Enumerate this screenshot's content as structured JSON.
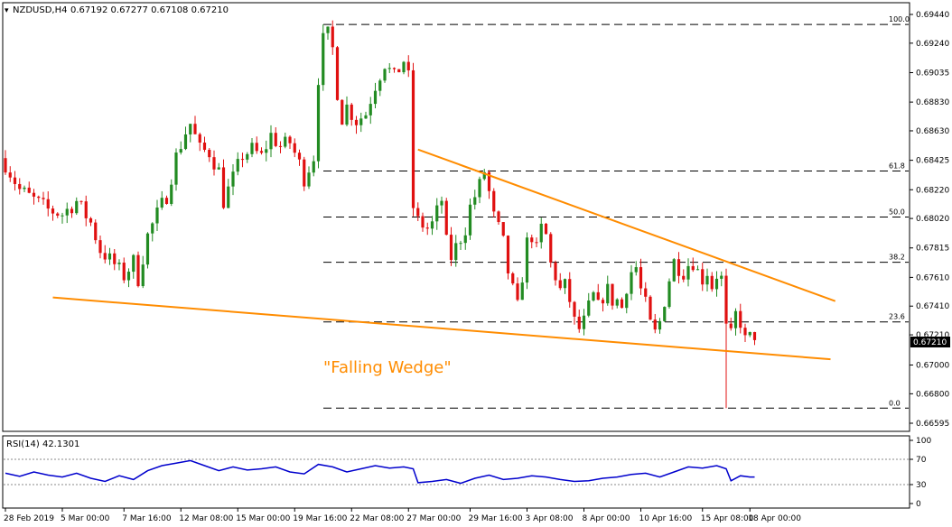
{
  "header": {
    "symbol": "NZDUSD,H4",
    "ohlc": "0.67192 0.67277 0.67108 0.67210"
  },
  "current_price": "0.67210",
  "pattern_label": "\"Falling Wedge\"",
  "colors": {
    "up_candle": "#228b22",
    "down_candle": "#e01010",
    "trendline": "#ff8c00",
    "rsi_line": "#0000cd",
    "fib_lines": "#000000",
    "price_label_bg": "#000000"
  },
  "chart_data": [
    {
      "type": "candlestick",
      "symbol": "NZDUSD",
      "timeframe": "H4",
      "ylim": [
        0.66595,
        0.6944
      ],
      "y_ticks": [
        "0.69440",
        "0.69240",
        "0.69035",
        "0.68830",
        "0.68630",
        "0.68425",
        "0.68220",
        "0.68020",
        "0.67815",
        "0.67610",
        "0.67410",
        "0.67210",
        "0.67000",
        "0.66800",
        "0.66595"
      ],
      "x_ticks": [
        "28 Feb 2019",
        "5 Mar 00:00",
        "7 Mar 16:00",
        "12 Mar 08:00",
        "15 Mar 00:00",
        "19 Mar 16:00",
        "22 Mar 08:00",
        "27 Mar 00:00",
        "29 Mar 16:00",
        "3 Apr 08:00",
        "8 Apr 00:00",
        "10 Apr 16:00",
        "15 Apr 08:00",
        "18 Apr 00:00"
      ],
      "close_path": [
        [
          0,
          0.684
        ],
        [
          3,
          0.6822
        ],
        [
          6,
          0.6815
        ],
        [
          9,
          0.6808
        ],
        [
          12,
          0.6805
        ],
        [
          15,
          0.6814
        ],
        [
          18,
          0.6799
        ],
        [
          20,
          0.678
        ],
        [
          23,
          0.677
        ],
        [
          25,
          0.6762
        ],
        [
          27,
          0.6772
        ],
        [
          28,
          0.676
        ],
        [
          30,
          0.679
        ],
        [
          32,
          0.6805
        ],
        [
          34,
          0.6818
        ],
        [
          36,
          0.6845
        ],
        [
          38,
          0.6862
        ],
        [
          39,
          0.6868
        ],
        [
          41,
          0.685
        ],
        [
          43,
          0.6848
        ],
        [
          45,
          0.6835
        ],
        [
          46,
          0.6814
        ],
        [
          48,
          0.683
        ],
        [
          50,
          0.6846
        ],
        [
          52,
          0.685
        ],
        [
          54,
          0.6845
        ],
        [
          56,
          0.686
        ],
        [
          58,
          0.6852
        ],
        [
          60,
          0.6855
        ],
        [
          62,
          0.684
        ],
        [
          63,
          0.683
        ],
        [
          65,
          0.6845
        ],
        [
          66,
          0.69
        ],
        [
          67,
          0.6926
        ],
        [
          68,
          0.693
        ],
        [
          69,
          0.692
        ],
        [
          70,
          0.689
        ],
        [
          71,
          0.6872
        ],
        [
          72,
          0.688
        ],
        [
          74,
          0.687
        ],
        [
          76,
          0.6875
        ],
        [
          78,
          0.6895
        ],
        [
          80,
          0.691
        ],
        [
          82,
          0.69
        ],
        [
          84,
          0.6912
        ],
        [
          85,
          0.69
        ],
        [
          86,
          0.681
        ],
        [
          87,
          0.68
        ],
        [
          89,
          0.6795
        ],
        [
          90,
          0.6798
        ],
        [
          92,
          0.6815
        ],
        [
          93,
          0.6785
        ],
        [
          94,
          0.6775
        ],
        [
          95,
          0.6782
        ],
        [
          97,
          0.6795
        ],
        [
          98,
          0.681
        ],
        [
          100,
          0.6825
        ],
        [
          101,
          0.6835
        ],
        [
          102,
          0.682
        ],
        [
          103,
          0.6803
        ],
        [
          104,
          0.6795
        ],
        [
          105,
          0.6785
        ],
        [
          106,
          0.6765
        ],
        [
          107,
          0.6752
        ],
        [
          108,
          0.674
        ],
        [
          109,
          0.6762
        ],
        [
          110,
          0.6785
        ],
        [
          111,
          0.679
        ],
        [
          112,
          0.678
        ],
        [
          113,
          0.6795
        ],
        [
          114,
          0.679
        ],
        [
          115,
          0.677
        ],
        [
          116,
          0.6762
        ],
        [
          117,
          0.6752
        ],
        [
          118,
          0.6755
        ],
        [
          119,
          0.6745
        ],
        [
          120,
          0.673
        ],
        [
          121,
          0.6725
        ],
        [
          122,
          0.673
        ],
        [
          123,
          0.674
        ],
        [
          124,
          0.6748
        ],
        [
          125,
          0.674
        ],
        [
          126,
          0.6748
        ],
        [
          127,
          0.6752
        ],
        [
          128,
          0.6745
        ],
        [
          129,
          0.6745
        ],
        [
          130,
          0.674
        ],
        [
          131,
          0.6755
        ],
        [
          132,
          0.6765
        ],
        [
          133,
          0.6768
        ],
        [
          134,
          0.6752
        ],
        [
          135,
          0.6742
        ],
        [
          136,
          0.6728
        ],
        [
          137,
          0.6722
        ],
        [
          138,
          0.673
        ],
        [
          139,
          0.6745
        ],
        [
          140,
          0.676
        ],
        [
          141,
          0.6772
        ],
        [
          142,
          0.6768
        ],
        [
          143,
          0.6765
        ],
        [
          144,
          0.677
        ],
        [
          145,
          0.6772
        ],
        [
          146,
          0.6765
        ],
        [
          147,
          0.676
        ],
        [
          148,
          0.6765
        ],
        [
          149,
          0.6755
        ],
        [
          150,
          0.6763
        ],
        [
          151,
          0.676
        ],
        [
          152,
          0.6725
        ],
        [
          153,
          0.672
        ],
        [
          154,
          0.6735
        ],
        [
          155,
          0.673
        ],
        [
          156,
          0.6717
        ],
        [
          157,
          0.6719
        ],
        [
          158,
          0.6721
        ]
      ],
      "overlays": [
        {
          "kind": "fibonacci",
          "levels": [
            {
              "label": "100.0",
              "price": 0.6937
            },
            {
              "label": "61.8",
              "price": 0.6835
            },
            {
              "label": "50.0",
              "price": 0.6803
            },
            {
              "label": "38.2",
              "price": 0.67715
            },
            {
              "label": "23.6",
              "price": 0.673
            },
            {
              "label": "0.0",
              "price": 0.667
            }
          ]
        },
        {
          "kind": "trendline",
          "name": "upper",
          "start": [
            87,
            0.685
          ],
          "end": [
            175,
            0.67445
          ]
        },
        {
          "kind": "trendline",
          "name": "lower",
          "start": [
            10,
            0.6747
          ],
          "end": [
            174,
            0.6704
          ]
        }
      ]
    },
    {
      "type": "line",
      "title": "RSI(14) 42.1301",
      "ylim": [
        0,
        100
      ],
      "y_ticks": [
        "100",
        "70",
        "30",
        "0"
      ],
      "levels": [
        70,
        30
      ],
      "x": [
        0,
        3,
        6,
        9,
        12,
        15,
        18,
        21,
        24,
        27,
        30,
        33,
        36,
        39,
        42,
        45,
        48,
        51,
        54,
        57,
        60,
        63,
        66,
        69,
        72,
        75,
        78,
        81,
        84,
        86,
        87,
        90,
        93,
        96,
        99,
        102,
        105,
        108,
        111,
        114,
        117,
        120,
        123,
        126,
        129,
        132,
        135,
        138,
        141,
        144,
        147,
        150,
        152,
        153,
        155,
        157,
        158
      ],
      "values": [
        48,
        43,
        50,
        45,
        42,
        48,
        40,
        35,
        44,
        38,
        52,
        60,
        64,
        68,
        60,
        52,
        58,
        53,
        55,
        58,
        50,
        47,
        62,
        58,
        50,
        55,
        60,
        56,
        58,
        55,
        33,
        35,
        38,
        32,
        40,
        45,
        38,
        40,
        44,
        42,
        38,
        35,
        36,
        40,
        42,
        46,
        48,
        42,
        50,
        58,
        56,
        60,
        55,
        36,
        44,
        42,
        42
      ]
    }
  ]
}
